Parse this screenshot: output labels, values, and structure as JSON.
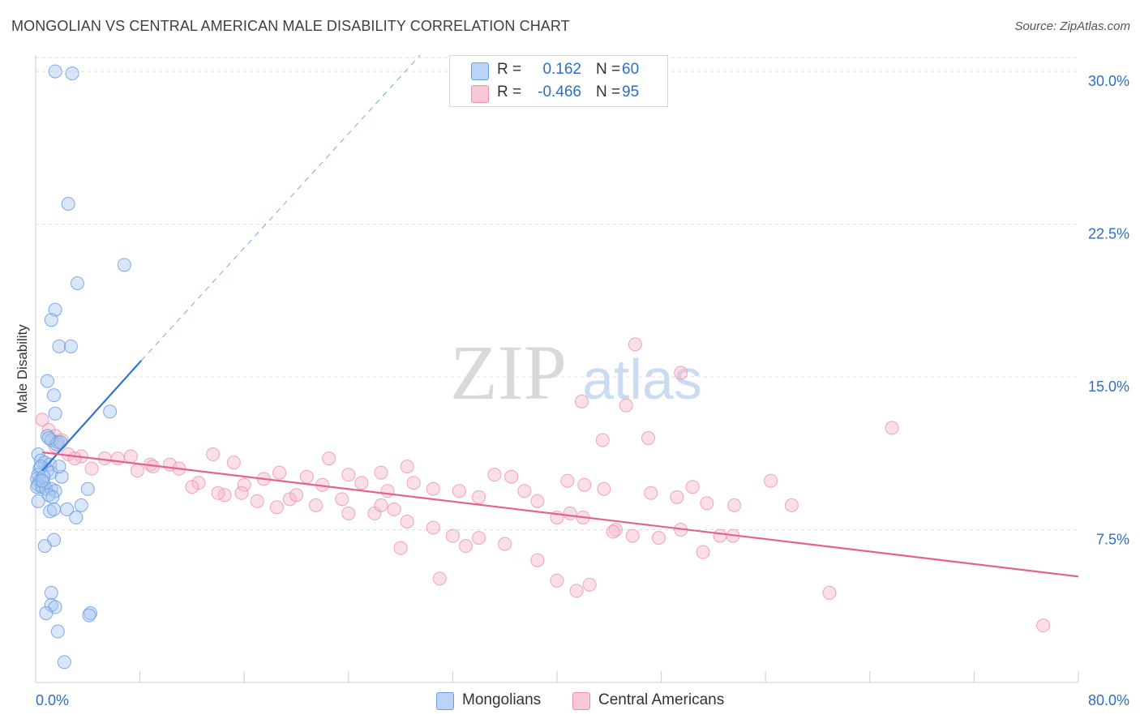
{
  "header": {
    "title": "MONGOLIAN VS CENTRAL AMERICAN MALE DISABILITY CORRELATION CHART",
    "source": "Source: ZipAtlas.com"
  },
  "watermark": {
    "zip": "ZIP",
    "atlas": "atlas"
  },
  "legend_top": {
    "row1": {
      "r_label": "R =",
      "r_value": "0.162",
      "n_label": "N =",
      "n_value": "60"
    },
    "row2": {
      "r_label": "R =",
      "r_value": "-0.466",
      "n_label": "N =",
      "n_value": "95"
    }
  },
  "legend_bottom": {
    "series1": "Mongolians",
    "series2": "Central Americans"
  },
  "colors": {
    "mongolians_fill": "#a9c8f0",
    "mongolians_stroke": "#6b9ee0",
    "mongolians_line": "#2d74d0",
    "central_fill": "#f6b7cc",
    "central_stroke": "#ee8fb0",
    "central_line": "#e5628f",
    "axis_label": "#2f6ec0",
    "grid": "#dddddd"
  },
  "chart_data": {
    "type": "scatter",
    "title": "MONGOLIAN VS CENTRAL AMERICAN MALE DISABILITY CORRELATION CHART",
    "xlabel": "",
    "ylabel": "Male Disability",
    "xlim": [
      0,
      80
    ],
    "ylim": [
      0,
      30.8
    ],
    "x_tick_labels": [
      "0.0%",
      "80.0%"
    ],
    "y_ticks": [
      7.5,
      15.0,
      22.5,
      30.0
    ],
    "y_tick_labels": [
      "7.5%",
      "15.0%",
      "22.5%",
      "30.0%"
    ],
    "grid": true,
    "legend_position": "top-center",
    "series": [
      {
        "name": "Mongolians",
        "r": 0.162,
        "n": 60,
        "trend": {
          "x": [
            0.5,
            8.1
          ],
          "y": [
            10.4,
            15.8
          ],
          "dashed_extension_to": [
            29.5,
            30.8
          ]
        },
        "points": [
          [
            1.5,
            30.0
          ],
          [
            2.8,
            29.9
          ],
          [
            2.5,
            23.5
          ],
          [
            6.8,
            20.5
          ],
          [
            3.2,
            19.6
          ],
          [
            1.5,
            18.3
          ],
          [
            1.2,
            17.8
          ],
          [
            1.8,
            16.5
          ],
          [
            2.7,
            16.5
          ],
          [
            0.9,
            14.8
          ],
          [
            1.4,
            14.1
          ],
          [
            1.5,
            13.2
          ],
          [
            5.7,
            13.3
          ],
          [
            0.9,
            12.1
          ],
          [
            1.2,
            11.9
          ],
          [
            1.7,
            11.8
          ],
          [
            1.6,
            11.7
          ],
          [
            1.9,
            11.8
          ],
          [
            0.2,
            11.2
          ],
          [
            0.4,
            10.9
          ],
          [
            0.7,
            10.8
          ],
          [
            1.1,
            10.7
          ],
          [
            0.3,
            10.5
          ],
          [
            0.9,
            10.4
          ],
          [
            1.2,
            10.3
          ],
          [
            0.2,
            10.2
          ],
          [
            2.0,
            10.1
          ],
          [
            0.1,
            10.0
          ],
          [
            0.3,
            9.9
          ],
          [
            0.6,
            9.8
          ],
          [
            0.2,
            9.7
          ],
          [
            0.1,
            9.6
          ],
          [
            0.5,
            9.6
          ],
          [
            0.8,
            9.5
          ],
          [
            1.2,
            9.5
          ],
          [
            1.5,
            9.4
          ],
          [
            4.0,
            9.5
          ],
          [
            1.0,
            9.2
          ],
          [
            1.3,
            9.1
          ],
          [
            0.2,
            8.9
          ],
          [
            3.5,
            8.7
          ],
          [
            2.4,
            8.5
          ],
          [
            1.1,
            8.4
          ],
          [
            1.4,
            8.5
          ],
          [
            3.1,
            8.1
          ],
          [
            1.4,
            7.0
          ],
          [
            0.7,
            6.7
          ],
          [
            1.2,
            4.4
          ],
          [
            1.2,
            3.8
          ],
          [
            1.5,
            3.7
          ],
          [
            0.8,
            3.4
          ],
          [
            4.2,
            3.4
          ],
          [
            4.1,
            3.3
          ],
          [
            1.7,
            2.5
          ],
          [
            2.2,
            1.0
          ],
          [
            0.4,
            10.6
          ],
          [
            0.6,
            10.1
          ],
          [
            1.8,
            10.6
          ],
          [
            0.5,
            9.9
          ],
          [
            1.0,
            12.0
          ]
        ]
      },
      {
        "name": "Central Americans",
        "r": -0.466,
        "n": 95,
        "trend": {
          "x": [
            0.5,
            80.0
          ],
          "y": [
            11.3,
            5.2
          ]
        },
        "points": [
          [
            0.5,
            12.9
          ],
          [
            1.0,
            12.4
          ],
          [
            1.5,
            12.1
          ],
          [
            2.0,
            11.9
          ],
          [
            1.5,
            11.6
          ],
          [
            2.5,
            11.2
          ],
          [
            3.5,
            11.1
          ],
          [
            5.3,
            11.0
          ],
          [
            7.3,
            11.1
          ],
          [
            10.3,
            10.7
          ],
          [
            13.6,
            11.2
          ],
          [
            15.2,
            10.8
          ],
          [
            18.7,
            10.3
          ],
          [
            20.8,
            10.1
          ],
          [
            24.0,
            10.2
          ],
          [
            26.5,
            10.3
          ],
          [
            28.5,
            10.6
          ],
          [
            35.2,
            10.2
          ],
          [
            36.5,
            10.1
          ],
          [
            40.8,
            9.9
          ],
          [
            42.1,
            9.7
          ],
          [
            43.6,
            9.5
          ],
          [
            47.2,
            9.3
          ],
          [
            49.2,
            9.1
          ],
          [
            50.4,
            9.6
          ],
          [
            51.5,
            8.8
          ],
          [
            53.6,
            8.7
          ],
          [
            56.4,
            9.9
          ],
          [
            6.3,
            11.0
          ],
          [
            8.8,
            10.7
          ],
          [
            11.0,
            10.5
          ],
          [
            12.5,
            9.8
          ],
          [
            14.5,
            9.2
          ],
          [
            16.0,
            9.7
          ],
          [
            17.5,
            10.0
          ],
          [
            19.5,
            9.0
          ],
          [
            22.0,
            9.7
          ],
          [
            23.5,
            9.0
          ],
          [
            25.0,
            9.8
          ],
          [
            27.0,
            9.4
          ],
          [
            29.0,
            9.8
          ],
          [
            30.5,
            9.5
          ],
          [
            32.5,
            9.4
          ],
          [
            34.0,
            9.1
          ],
          [
            37.5,
            9.4
          ],
          [
            38.5,
            8.9
          ],
          [
            40.0,
            8.1
          ],
          [
            41.0,
            8.3
          ],
          [
            42.0,
            8.1
          ],
          [
            44.5,
            7.5
          ],
          [
            45.8,
            7.2
          ],
          [
            47.8,
            7.1
          ],
          [
            49.5,
            7.5
          ],
          [
            51.2,
            6.4
          ],
          [
            52.5,
            7.2
          ],
          [
            53.5,
            7.2
          ],
          [
            40.0,
            5.0
          ],
          [
            41.5,
            4.5
          ],
          [
            42.5,
            4.8
          ],
          [
            38.5,
            6.0
          ],
          [
            36.0,
            6.8
          ],
          [
            34.0,
            7.1
          ],
          [
            32.0,
            7.2
          ],
          [
            30.5,
            7.6
          ],
          [
            28.5,
            7.9
          ],
          [
            27.5,
            8.5
          ],
          [
            26.0,
            8.3
          ],
          [
            24.0,
            8.3
          ],
          [
            21.5,
            8.7
          ],
          [
            20.0,
            9.2
          ],
          [
            18.5,
            8.6
          ],
          [
            17.0,
            8.9
          ],
          [
            15.8,
            9.3
          ],
          [
            14.0,
            9.3
          ],
          [
            12.0,
            9.6
          ],
          [
            9.0,
            10.6
          ],
          [
            7.8,
            10.4
          ],
          [
            4.3,
            10.5
          ],
          [
            3.0,
            11.0
          ],
          [
            22.5,
            11.0
          ],
          [
            26.5,
            8.7
          ],
          [
            28.0,
            6.6
          ],
          [
            31.0,
            5.1
          ],
          [
            33.0,
            6.7
          ],
          [
            44.3,
            7.4
          ],
          [
            58.0,
            8.7
          ],
          [
            65.7,
            12.5
          ],
          [
            46.0,
            16.6
          ],
          [
            49.5,
            15.2
          ],
          [
            41.9,
            13.8
          ],
          [
            45.3,
            13.6
          ],
          [
            43.5,
            11.9
          ],
          [
            47.0,
            12.0
          ],
          [
            60.9,
            4.4
          ],
          [
            77.3,
            2.8
          ]
        ]
      }
    ]
  }
}
